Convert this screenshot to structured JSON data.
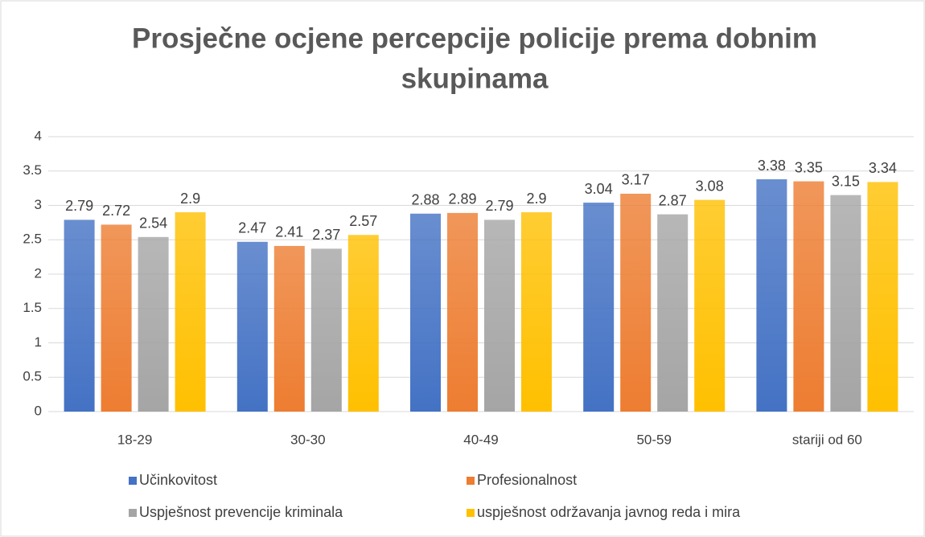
{
  "chart_data": {
    "type": "bar",
    "title": [
      "Prosječne ocjene percepcije policije prema dobnim",
      "skupinama"
    ],
    "categories": [
      "18-29",
      "30-30",
      "40-49",
      "50-59",
      "stariji od 60"
    ],
    "series": [
      {
        "name": "Učinkovitost",
        "color": "#4472c4",
        "values": [
          2.79,
          2.47,
          2.88,
          3.04,
          3.38
        ]
      },
      {
        "name": "Profesionalnost",
        "color": "#ed7d31",
        "values": [
          2.72,
          2.41,
          2.89,
          3.17,
          3.35
        ]
      },
      {
        "name": "Uspješnost prevencije kriminala",
        "color": "#a5a5a5",
        "values": [
          2.54,
          2.37,
          2.79,
          2.87,
          3.15
        ]
      },
      {
        "name": "uspješnost održavanja javnog reda i mira",
        "color": "#ffc000",
        "values": [
          2.9,
          2.57,
          2.9,
          3.08,
          3.34
        ]
      }
    ],
    "ylim": [
      0,
      4
    ],
    "yticks": [
      0,
      0.5,
      1,
      1.5,
      2,
      2.5,
      3,
      3.5,
      4
    ],
    "grid": true,
    "legend": "bottom"
  }
}
